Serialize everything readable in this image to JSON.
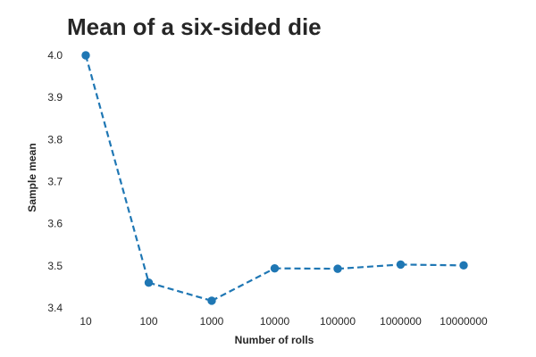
{
  "chart_data": {
    "type": "line",
    "title": "Mean of a six-sided die",
    "xlabel": "Number of rolls",
    "ylabel": "Sample mean",
    "x_scale": "categorical",
    "categories": [
      "10",
      "100",
      "1000",
      "10000",
      "100000",
      "1000000",
      "10000000"
    ],
    "series": [
      {
        "values": [
          4.0,
          3.46,
          3.417,
          3.494,
          3.493,
          3.503,
          3.501
        ],
        "color": "#1f77b4",
        "line_style": "dashed",
        "marker": "circle"
      }
    ],
    "yticks": [
      "3.4",
      "3.5",
      "3.6",
      "3.7",
      "3.8",
      "3.9",
      "4.0"
    ],
    "ylim": [
      3.4,
      4.0
    ],
    "grid": false,
    "legend": "none"
  },
  "colors": {
    "background": "#ffffff",
    "text": "#262626",
    "series": "#1f77b4"
  }
}
